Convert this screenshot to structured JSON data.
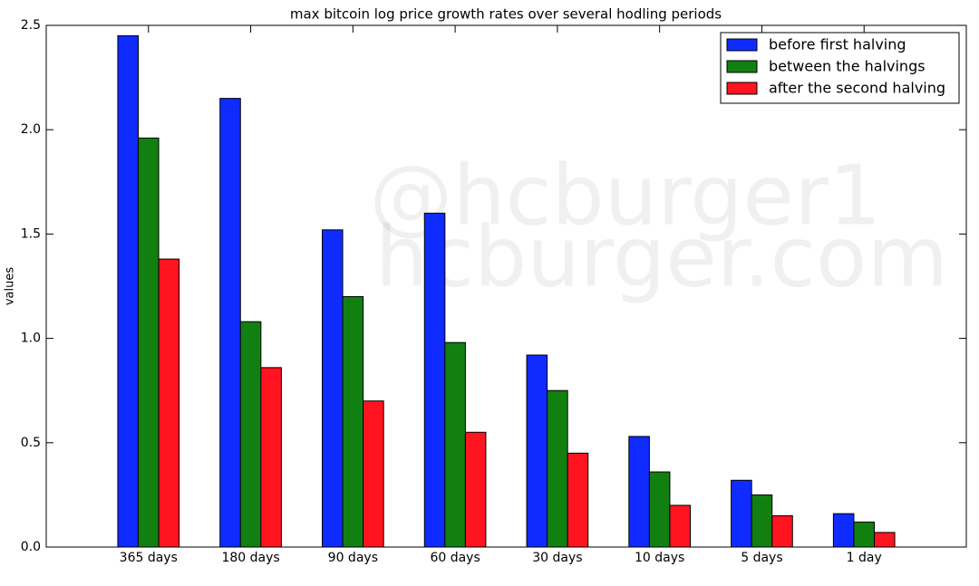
{
  "chart_data": {
    "type": "bar",
    "title": "max bitcoin log price growth rates over several hodling periods",
    "y_label": "values",
    "watermark": [
      "@hcburger1",
      "hcburger.com"
    ],
    "categories": [
      "365 days",
      "180 days",
      "90 days",
      "60 days",
      "30 days",
      "10 days",
      "5 days",
      "1 day"
    ],
    "series": [
      {
        "name": "before first halving",
        "color": "#0f2bff",
        "values": [
          2.45,
          2.15,
          1.52,
          1.6,
          0.92,
          0.53,
          0.32,
          0.16
        ]
      },
      {
        "name": "between the halvings",
        "color": "#118011",
        "values": [
          1.96,
          1.08,
          1.2,
          0.98,
          0.75,
          0.36,
          0.25,
          0.12
        ]
      },
      {
        "name": "after the second halving",
        "color": "#ff1420",
        "values": [
          1.38,
          0.86,
          0.7,
          0.55,
          0.45,
          0.2,
          0.15,
          0.07
        ]
      }
    ],
    "ylim": [
      0,
      2.5
    ],
    "yticks": [
      {
        "value": 0,
        "label": "0.0"
      },
      0.5,
      {
        "value": 1,
        "label": "1.0"
      },
      1.5,
      {
        "value": 2,
        "label": "2.0"
      },
      2.5
    ],
    "legend": "upper right"
  }
}
